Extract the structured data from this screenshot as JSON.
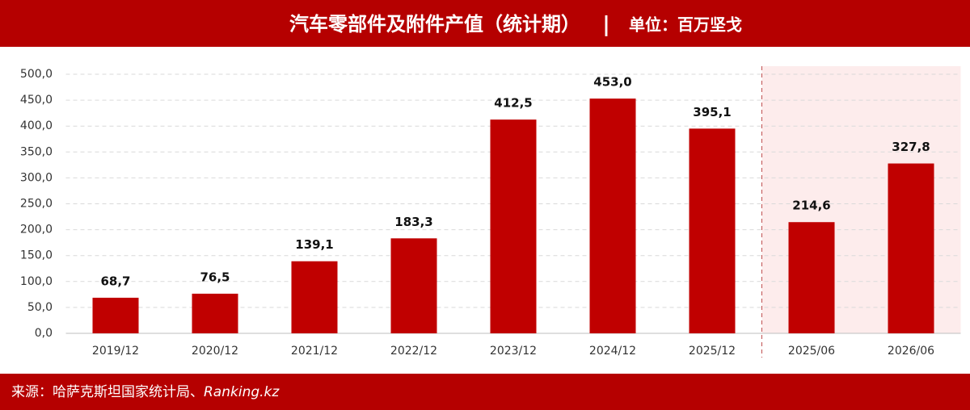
{
  "chart_data": {
    "type": "bar",
    "title": "汽车零部件及附件产值（统计期）",
    "separator": "|",
    "unit": "单位：百万坚戈",
    "source": "来源：哈萨克斯坦国家统计局、",
    "source_site": "Ranking.kz",
    "categories": [
      "2019/12",
      "2020/12",
      "2021/12",
      "2022/12",
      "2023/12",
      "2024/12",
      "2025/12",
      "2025/06",
      "2026/06"
    ],
    "values": [
      68.7,
      76.5,
      139.1,
      183.3,
      412.5,
      453.0,
      395.1,
      214.6,
      327.8
    ],
    "value_labels": [
      "68,7",
      "76,5",
      "139,1",
      "183,3",
      "412,5",
      "453,0",
      "395,1",
      "214,6",
      "327,8"
    ],
    "color": "#c00000",
    "shaded_from": "2025/06",
    "ylim": [
      0,
      500
    ],
    "yticks": [
      {
        "value": 0,
        "label": "0,0"
      },
      {
        "value": 50,
        "label": "50,0"
      },
      {
        "value": 100,
        "label": "100,0"
      },
      {
        "value": 150,
        "label": "150,0"
      },
      {
        "value": 200,
        "label": "200,0"
      },
      {
        "value": 250,
        "label": "250,0"
      },
      {
        "value": 300,
        "label": "300,0"
      },
      {
        "value": 350,
        "label": "350,0"
      },
      {
        "value": 400,
        "label": "400,0"
      },
      {
        "value": 450,
        "label": "450,0"
      },
      {
        "value": 500,
        "label": "500,0"
      }
    ],
    "grid": true
  }
}
